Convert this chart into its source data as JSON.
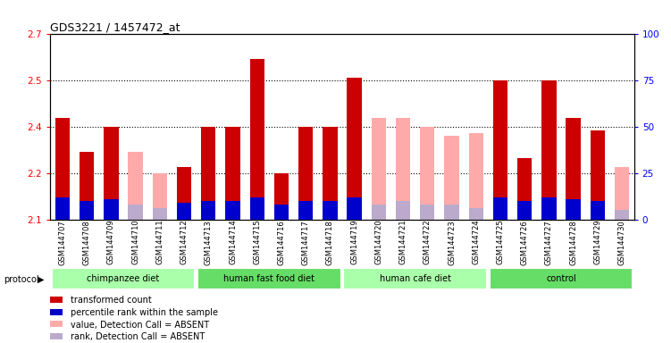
{
  "title": "GDS3221 / 1457472_at",
  "samples": [
    "GSM144707",
    "GSM144708",
    "GSM144709",
    "GSM144710",
    "GSM144711",
    "GSM144712",
    "GSM144713",
    "GSM144714",
    "GSM144715",
    "GSM144716",
    "GSM144717",
    "GSM144718",
    "GSM144719",
    "GSM144720",
    "GSM144721",
    "GSM144722",
    "GSM144723",
    "GSM144724",
    "GSM144725",
    "GSM144726",
    "GSM144727",
    "GSM144728",
    "GSM144729",
    "GSM144730"
  ],
  "transformed_count": [
    2.43,
    2.32,
    2.4,
    null,
    null,
    2.27,
    2.4,
    2.4,
    2.62,
    2.25,
    2.4,
    2.4,
    2.56,
    null,
    null,
    null,
    null,
    null,
    2.55,
    2.3,
    2.55,
    2.43,
    2.39,
    null
  ],
  "percentile_rank": [
    12,
    10,
    11,
    null,
    null,
    9,
    10,
    10,
    12,
    8,
    10,
    10,
    12,
    null,
    null,
    null,
    null,
    null,
    12,
    10,
    12,
    11,
    10,
    null
  ],
  "absent_value": [
    null,
    null,
    null,
    2.32,
    2.25,
    null,
    null,
    null,
    null,
    null,
    null,
    null,
    null,
    2.43,
    2.43,
    2.4,
    2.37,
    2.38,
    null,
    null,
    null,
    null,
    null,
    2.27
  ],
  "absent_rank": [
    null,
    null,
    null,
    8,
    6,
    null,
    null,
    null,
    null,
    null,
    null,
    null,
    null,
    8,
    10,
    8,
    8,
    6,
    null,
    null,
    null,
    null,
    null,
    5
  ],
  "groups": [
    {
      "label": "chimpanzee diet",
      "start": 0,
      "end": 6,
      "color": "#aaffaa"
    },
    {
      "label": "human fast food diet",
      "start": 6,
      "end": 12,
      "color": "#66dd66"
    },
    {
      "label": "human cafe diet",
      "start": 12,
      "end": 18,
      "color": "#aaffaa"
    },
    {
      "label": "control",
      "start": 18,
      "end": 24,
      "color": "#66dd66"
    }
  ],
  "ylim_left": [
    2.1,
    2.7
  ],
  "ylim_right": [
    0,
    100
  ],
  "yticks_left": [
    2.1,
    2.25,
    2.4,
    2.55,
    2.7
  ],
  "yticks_right": [
    0,
    25,
    50,
    75,
    100
  ],
  "bar_width": 0.6,
  "red_color": "#cc0000",
  "blue_color": "#0000cc",
  "pink_color": "#ffaaaa",
  "lavender_color": "#bbaacc",
  "plot_bg": "#ffffff",
  "fig_bg": "#ffffff"
}
